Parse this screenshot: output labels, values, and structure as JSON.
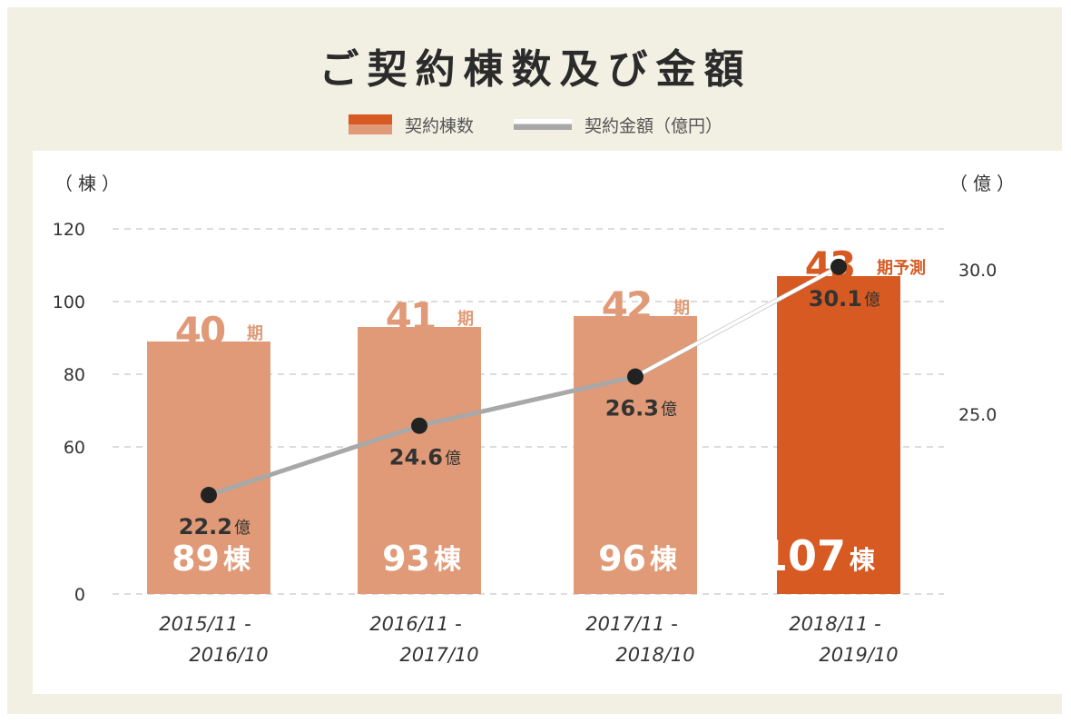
{
  "title": "ご契約棟数及び金額",
  "legend": {
    "bar_label": "契約棟数",
    "line_label": "契約金額（億円）"
  },
  "units": {
    "left": "（棟）",
    "right": "（億）"
  },
  "colors": {
    "bar": "#e09a77",
    "bar_highlight": "#d75a22",
    "line_past": "#a8a8a8",
    "line_recent": "#ffffff",
    "point": "#222222",
    "grid": "#c8c8c8"
  },
  "chart_data": {
    "type": "bar",
    "title": "ご契約棟数及び金額",
    "categories": [
      [
        "2015/11 -",
        "2016/10"
      ],
      [
        "2016/11 -",
        "2017/10"
      ],
      [
        "2017/11 -",
        "2018/10"
      ],
      [
        "2018/11 -",
        "2019/10"
      ]
    ],
    "series": [
      {
        "name": "契約棟数",
        "type": "bar",
        "axis": "left",
        "values": [
          89,
          93,
          96,
          107
        ],
        "value_labels": [
          "89",
          "93",
          "96",
          "107"
        ],
        "value_unit": "棟",
        "period_labels": [
          "40",
          "41",
          "42",
          "43"
        ],
        "period_suffix": [
          "期",
          "期",
          "期",
          "期予測"
        ],
        "highlight_index": 3
      },
      {
        "name": "契約金額（億円）",
        "type": "line",
        "axis": "right",
        "values": [
          22.2,
          24.6,
          26.3,
          30.1
        ],
        "value_labels": [
          "22.2",
          "24.6",
          "26.3",
          "30.1"
        ],
        "value_unit": "億"
      }
    ],
    "left_axis": {
      "ticks": [
        0,
        60,
        80,
        100,
        120
      ],
      "tick_labels": [
        "0",
        "60",
        "80",
        "100",
        "120"
      ],
      "broken": true
    },
    "right_axis": {
      "ticks": [
        25.0,
        30.0
      ],
      "tick_labels": [
        "25.0",
        "30.0"
      ]
    },
    "grid": true,
    "legend_position": "top-center"
  }
}
